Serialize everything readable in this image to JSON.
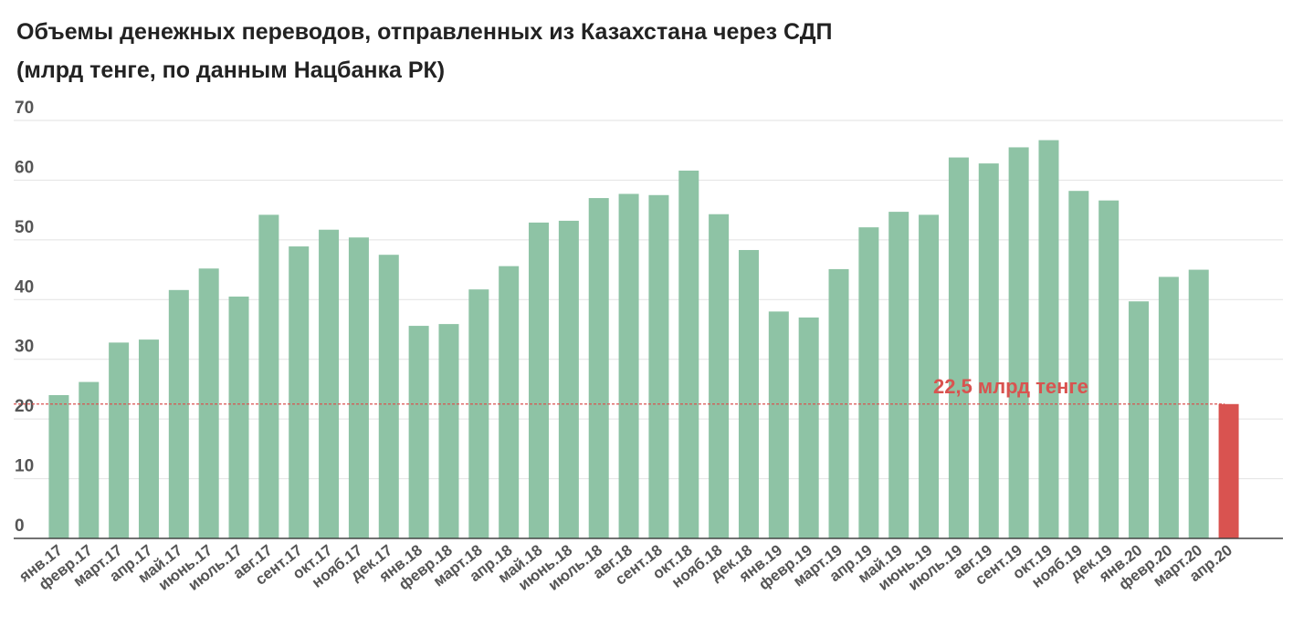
{
  "chart_data": {
    "type": "bar",
    "title": "Объемы денежных переводов, отправленных из Казахстана через СДП",
    "subtitle": "(млрд тенге, по данным Нацбанка РК)",
    "categories": [
      "янв.17",
      "февр.17",
      "март.17",
      "апр.17",
      "май.17",
      "июнь.17",
      "июль.17",
      "авг.17",
      "сент.17",
      "окт.17",
      "нояб.17",
      "дек.17",
      "янв.18",
      "февр.18",
      "март.18",
      "апр.18",
      "май.18",
      "июнь.18",
      "июль.18",
      "авг.18",
      "сент.18",
      "окт.18",
      "нояб.18",
      "дек.18",
      "янв.19",
      "февр.19",
      "март.19",
      "апр.19",
      "май.19",
      "июнь.19",
      "июль.19",
      "авг.19",
      "сент.19",
      "окт.19",
      "нояб.19",
      "дек.19",
      "янв.20",
      "февр.20",
      "март.20",
      "апр.20"
    ],
    "values": [
      24.0,
      26.2,
      32.8,
      33.3,
      41.6,
      45.2,
      40.5,
      54.2,
      48.9,
      51.7,
      50.4,
      47.5,
      35.6,
      35.9,
      41.7,
      45.6,
      52.9,
      53.2,
      57.0,
      57.7,
      57.5,
      61.6,
      54.3,
      48.3,
      38.0,
      37.0,
      45.1,
      52.1,
      54.7,
      54.2,
      63.8,
      62.8,
      65.5,
      66.7,
      58.2,
      56.6,
      39.7,
      43.8,
      45.0,
      22.5
    ],
    "ylim": [
      0,
      70
    ],
    "yticks": [
      0,
      10,
      20,
      30,
      40,
      50,
      60,
      70
    ],
    "grid": true,
    "colors": {
      "bar": "#8ec3a5",
      "highlight": "#d95350",
      "grid": "#e2e2e2",
      "axis": "#444444"
    },
    "highlight_index": 39,
    "reference_line": {
      "value": 22.5,
      "label": "22,5 млрд тенге"
    }
  }
}
